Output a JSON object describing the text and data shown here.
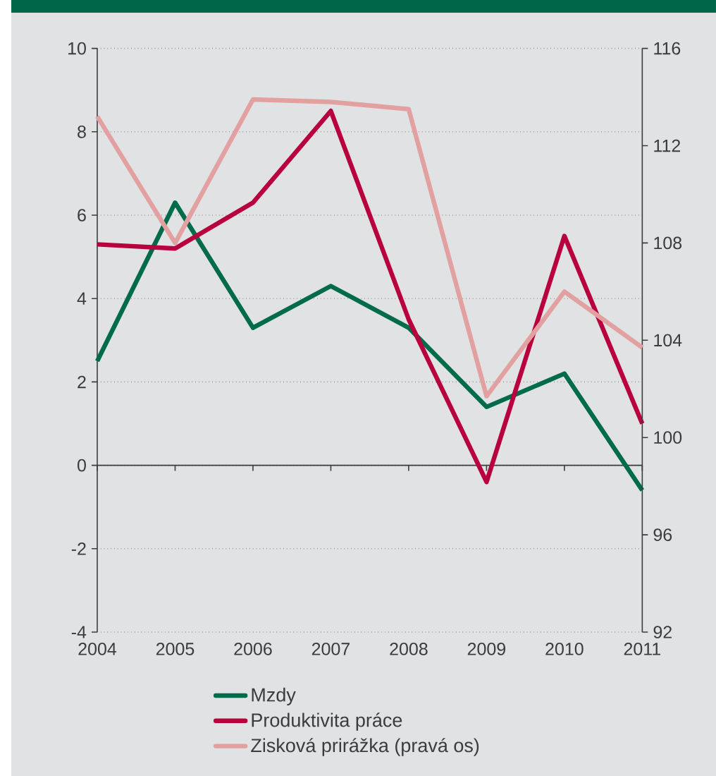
{
  "chart_data": {
    "type": "line",
    "categories": [
      "2004",
      "2005",
      "2006",
      "2007",
      "2008",
      "2009",
      "2010",
      "2011"
    ],
    "series": [
      {
        "name": "Mzdy",
        "color": "#006b4a",
        "values": [
          2.5,
          6.3,
          3.3,
          4.3,
          3.3,
          1.4,
          2.2,
          -0.6
        ]
      },
      {
        "name": "Produktivita práce",
        "color": "#b8003f",
        "values": [
          5.3,
          5.2,
          6.3,
          8.5,
          3.5,
          -0.4,
          5.5,
          1.0
        ]
      },
      {
        "name": "Zisková prirážka (pravá os)",
        "color": "#e2a0a1",
        "axis": "y2",
        "values": [
          113.2,
          108.0,
          113.9,
          113.8,
          113.5,
          101.7,
          106.0,
          103.7
        ]
      }
    ],
    "ylim": [
      -4,
      10
    ],
    "yticks": [
      -4,
      -2,
      0,
      2,
      4,
      6,
      8,
      10
    ],
    "y2lim": [
      92,
      116
    ],
    "y2ticks": [
      92,
      96,
      100,
      104,
      108,
      112,
      116
    ],
    "grid": "y",
    "legend": "bottom"
  }
}
